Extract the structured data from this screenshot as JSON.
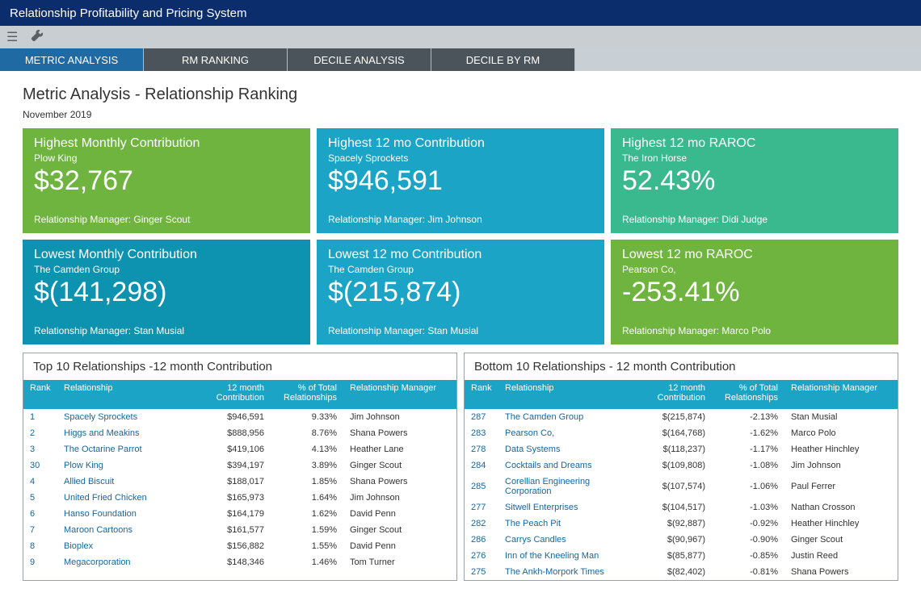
{
  "app_title": "Relationship Profitability and Pricing System",
  "tabs": [
    {
      "label": "METRIC ANALYSIS",
      "active": true
    },
    {
      "label": "RM RANKING",
      "active": false
    },
    {
      "label": "DECILE ANALYSIS",
      "active": false
    },
    {
      "label": "DECILE BY RM",
      "active": false
    }
  ],
  "page": {
    "title": "Metric Analysis - Relationship Ranking",
    "date": "November 2019"
  },
  "colors": {
    "green": "#6fb43f",
    "teal": "#1ba4c6",
    "dkteal": "#0d92b0",
    "mintgreen": "#3bb98e"
  },
  "cards": [
    {
      "title": "Highest Monthly Contribution",
      "sub": "Plow King",
      "value": "$32,767",
      "mgr": "Relationship Manager: Ginger Scout",
      "bg": "#6fb43f"
    },
    {
      "title": "Highest 12 mo Contribution",
      "sub": "Spacely Sprockets",
      "value": "$946,591",
      "mgr": "Relationship Manager: Jim Johnson",
      "bg": "#1ba4c6"
    },
    {
      "title": "Highest 12 mo RAROC",
      "sub": "The Iron Horse",
      "value": "52.43%",
      "mgr": "Relationship Manager: Didi Judge",
      "bg": "#3bb98e"
    },
    {
      "title": "Lowest Monthly Contribution",
      "sub": "The Camden Group",
      "value": "$(141,298)",
      "mgr": "Relationship Manager: Stan Musial",
      "bg": "#0d92b0"
    },
    {
      "title": "Lowest 12 mo Contribution",
      "sub": "The Camden Group",
      "value": "$(215,874)",
      "mgr": "Relationship Manager: Stan Musial",
      "bg": "#1ba4c6"
    },
    {
      "title": "Lowest 12 mo RAROC",
      "sub": "Pearson Co,",
      "value": "-253.41%",
      "mgr": "Relationship Manager: Marco Polo",
      "bg": "#6fb43f"
    }
  ],
  "top_table": {
    "title": "Top 10 Relationships -12 month Contribution",
    "headers": {
      "rank": "Rank",
      "rel": "Relationship",
      "contrib1": "12 month",
      "contrib2": "Contribution",
      "pct1": "% of Total",
      "pct2": "Relationships",
      "mgr": "Relationship Manager"
    },
    "rows": [
      {
        "rank": "1",
        "rel": "Spacely Sprockets",
        "contrib": "$946,591",
        "pct": "9.33%",
        "mgr": "Jim Johnson"
      },
      {
        "rank": "2",
        "rel": "Higgs and Meakins",
        "contrib": "$888,956",
        "pct": "8.76%",
        "mgr": "Shana Powers"
      },
      {
        "rank": "3",
        "rel": "The Octarine Parrot",
        "contrib": "$419,106",
        "pct": "4.13%",
        "mgr": "Heather Lane"
      },
      {
        "rank": "30",
        "rel": "Plow King",
        "contrib": "$394,197",
        "pct": "3.89%",
        "mgr": "Ginger Scout"
      },
      {
        "rank": "4",
        "rel": "Allied Biscuit",
        "contrib": "$188,017",
        "pct": "1.85%",
        "mgr": "Shana Powers"
      },
      {
        "rank": "5",
        "rel": "United Fried Chicken",
        "contrib": "$165,973",
        "pct": "1.64%",
        "mgr": "Jim Johnson"
      },
      {
        "rank": "6",
        "rel": "Hanso Foundation",
        "contrib": "$164,179",
        "pct": "1.62%",
        "mgr": "David Penn"
      },
      {
        "rank": "7",
        "rel": "Maroon Cartoons",
        "contrib": "$161,577",
        "pct": "1.59%",
        "mgr": "Ginger Scout"
      },
      {
        "rank": "8",
        "rel": "Bioplex",
        "contrib": "$156,882",
        "pct": "1.55%",
        "mgr": "David Penn"
      },
      {
        "rank": "9",
        "rel": "Megacorporation",
        "contrib": "$148,346",
        "pct": "1.46%",
        "mgr": "Tom Turner"
      }
    ]
  },
  "bottom_table": {
    "title": "Bottom 10 Relationships - 12 month Contribution",
    "headers": {
      "rank": "Rank",
      "rel": "Relationship",
      "contrib1": "12 month",
      "contrib2": "Contribution",
      "pct1": "% of Total",
      "pct2": "Relationships",
      "mgr": "Relationship Manager"
    },
    "rows": [
      {
        "rank": "287",
        "rel": "The Camden Group",
        "contrib": "$(215,874)",
        "pct": "-2.13%",
        "mgr": "Stan Musial"
      },
      {
        "rank": "283",
        "rel": "Pearson Co,",
        "contrib": "$(164,768)",
        "pct": "-1.62%",
        "mgr": "Marco Polo"
      },
      {
        "rank": "278",
        "rel": "Data Systems",
        "contrib": "$(118,237)",
        "pct": "-1.17%",
        "mgr": "Heather Hinchley"
      },
      {
        "rank": "284",
        "rel": "Cocktails and Dreams",
        "contrib": "$(109,808)",
        "pct": "-1.08%",
        "mgr": "Jim Johnson"
      },
      {
        "rank": "285",
        "rel": "Corellian Engineering Corporation",
        "contrib": "$(107,574)",
        "pct": "-1.06%",
        "mgr": "Paul Ferrer"
      },
      {
        "rank": "277",
        "rel": "Sitwell Enterprises",
        "contrib": "$(104,517)",
        "pct": "-1.03%",
        "mgr": "Nathan Crosson"
      },
      {
        "rank": "282",
        "rel": "The Peach Pit",
        "contrib": "$(92,887)",
        "pct": "-0.92%",
        "mgr": "Heather Hinchley"
      },
      {
        "rank": "286",
        "rel": "Carrys Candles",
        "contrib": "$(90,967)",
        "pct": "-0.90%",
        "mgr": "Ginger Scout"
      },
      {
        "rank": "276",
        "rel": "Inn of the Kneeling Man",
        "contrib": "$(85,877)",
        "pct": "-0.85%",
        "mgr": "Justin Reed"
      },
      {
        "rank": "275",
        "rel": "The Ankh-Morpork Times",
        "contrib": "$(82,402)",
        "pct": "-0.81%",
        "mgr": "Shana Powers"
      }
    ]
  }
}
